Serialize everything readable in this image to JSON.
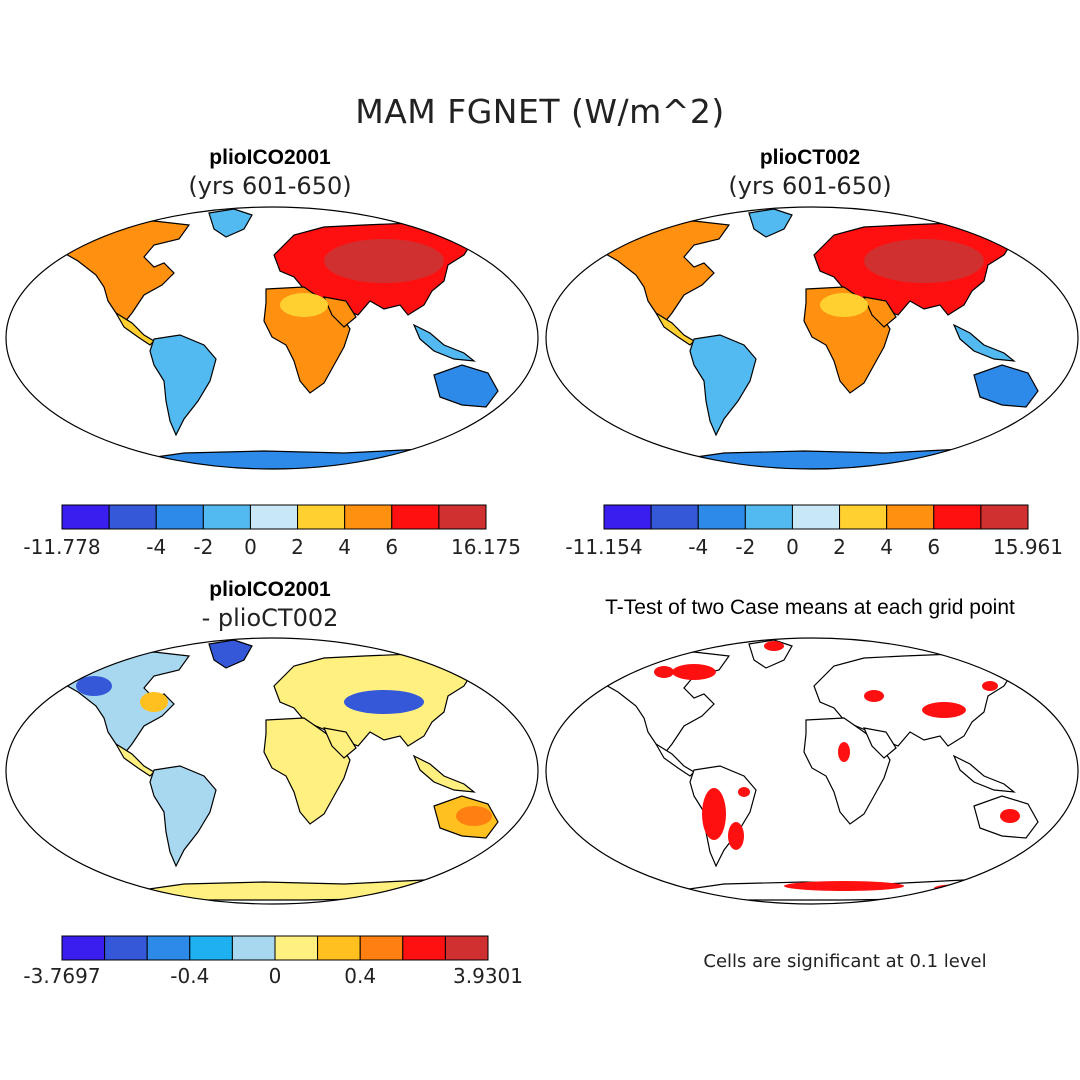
{
  "main_title": "MAM FGNET (W/m^2)",
  "panels": [
    {
      "title": "plioICO2001",
      "subtitle": "(yrs 601-650)",
      "colorbar": {
        "colors": [
          "#3a1ef0",
          "#3458d8",
          "#2e8ae8",
          "#52baf0",
          "#c8e8f8",
          "#ffd030",
          "#ff9010",
          "#ff1010",
          "#d03030"
        ],
        "tick_labels": [
          "-11.778",
          "-4",
          "-2",
          "0",
          "2",
          "4",
          "6",
          "16.175"
        ]
      }
    },
    {
      "title": "plioCT002",
      "subtitle": "(yrs 601-650)",
      "colorbar": {
        "colors": [
          "#3a1ef0",
          "#3458d8",
          "#2e8ae8",
          "#52baf0",
          "#c8e8f8",
          "#ffd030",
          "#ff9010",
          "#ff1010",
          "#d03030"
        ],
        "tick_labels": [
          "-11.154",
          "-4",
          "-2",
          "0",
          "2",
          "4",
          "6",
          "15.961"
        ]
      }
    },
    {
      "title": "plioICO2001",
      "subtitle": "- plioCT002",
      "colorbar": {
        "colors": [
          "#3a1ef0",
          "#3458d8",
          "#2e8ae8",
          "#1eb0f0",
          "#a8d8f0",
          "#fff080",
          "#ffc020",
          "#ff8010",
          "#ff1010",
          "#d03030"
        ],
        "tick_labels": [
          "-3.7697",
          "-0.4",
          "0",
          "0.4",
          "3.9301"
        ]
      }
    },
    {
      "title": "T-Test of two Case means at each grid point",
      "subtitle": "",
      "note": "Cells are significant at 0.1 level"
    }
  ]
}
